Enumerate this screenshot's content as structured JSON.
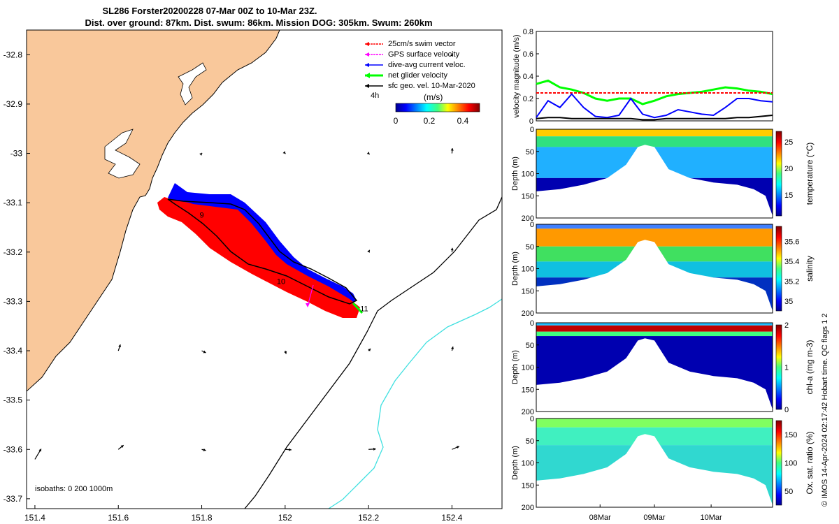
{
  "title": {
    "line1": "SL286 Forster20200228 07-Mar 00Z to 10-Mar 23Z.",
    "line2": "Dist. over ground: 87km. Dist. swum: 86km. Mission DOG: 305km. Swum: 260km"
  },
  "colors": {
    "land": "#f9c89b",
    "swim": "#ff0000",
    "gps": "#ff00ff",
    "current": "#0000ff",
    "net": "#00ff00",
    "geo": "#000000",
    "isobath_200": "#000000",
    "isobath_1000": "#40e0e0"
  },
  "chart_data": [
    {
      "type": "map",
      "xticks": [
        "151.4",
        "151.6",
        "151.8",
        "152",
        "152.2",
        "152.4"
      ],
      "yticks": [
        "-32.8",
        "-32.9",
        "-33",
        "-33.1",
        "-33.2",
        "-33.3",
        "-33.4",
        "-33.5",
        "-33.6",
        "-33.7"
      ],
      "xlim": [
        151.38,
        152.52
      ],
      "ylim": [
        -33.72,
        -32.75
      ],
      "legend": {
        "position": "top-right",
        "entries": [
          "25cm/s swim vector",
          "GPS surface velocity",
          "dive-avg current veloc.",
          "net glider velocity",
          "sfc geo. vel. 10-Mar-2020"
        ]
      },
      "colorbar": {
        "label": "(m/s)",
        "ticks": [
          "0",
          "0.2",
          "0.4"
        ],
        "range": [
          0,
          0.5
        ]
      },
      "time_label": "4h",
      "day_labels": [
        {
          "text": "9",
          "lon": 151.795,
          "lat": -33.13
        },
        {
          "text": "10",
          "lon": 151.98,
          "lat": -33.265
        },
        {
          "text": "11",
          "lon": 152.18,
          "lat": -33.32
        }
      ],
      "isobath_label": "isobaths: 0   200  1000m",
      "geo_vectors": [
        {
          "lon": 151.4,
          "lat": -33.62,
          "u": 0.3,
          "v": 0.5
        },
        {
          "lon": 151.6,
          "lat": -33.6,
          "u": 0.25,
          "v": 0.2
        },
        {
          "lon": 151.6,
          "lat": -33.4,
          "u": 0.1,
          "v": 0.3
        },
        {
          "lon": 151.8,
          "lat": -33.6,
          "u": 0.2,
          "v": -0.05
        },
        {
          "lon": 151.8,
          "lat": -33.4,
          "u": 0.2,
          "v": -0.1
        },
        {
          "lon": 152,
          "lat": -33.6,
          "u": 0.3,
          "v": -0.02
        },
        {
          "lon": 152,
          "lat": -33.4,
          "u": 0.05,
          "v": -0.15
        },
        {
          "lon": 152.2,
          "lat": -33.6,
          "u": 0.35,
          "v": 0.02
        },
        {
          "lon": 152.2,
          "lat": -33.4,
          "u": 0.1,
          "v": 0.1
        },
        {
          "lon": 152.4,
          "lat": -33.6,
          "u": 0.35,
          "v": 0.15
        },
        {
          "lon": 152.4,
          "lat": -33.4,
          "u": 0.05,
          "v": 0.2
        },
        {
          "lon": 152.2,
          "lat": -33.2,
          "u": 0.05,
          "v": 0.1
        },
        {
          "lon": 152.4,
          "lat": -33.2,
          "u": 0.02,
          "v": 0.2
        },
        {
          "lon": 152.4,
          "lat": -33,
          "u": 0.02,
          "v": 0.25
        },
        {
          "lon": 152.2,
          "lat": -33,
          "u": 0.05,
          "v": -0.05
        },
        {
          "lon": 152,
          "lat": -33,
          "u": 0.02,
          "v": -0.02
        },
        {
          "lon": 151.8,
          "lat": -33,
          "u": 0.02,
          "v": 0.02
        },
        {
          "lon": 152.4,
          "lat": -32.8,
          "u": 0.02,
          "v": 0.05
        }
      ]
    },
    {
      "type": "line",
      "ylabel": "velocity magnitude (m/s)",
      "ylim": [
        0,
        0.8
      ],
      "yticks": [
        "0",
        "0.2",
        "0.4",
        "0.6",
        "0.8"
      ],
      "x": [
        0,
        0.05,
        0.1,
        0.15,
        0.2,
        0.25,
        0.3,
        0.35,
        0.4,
        0.45,
        0.5,
        0.55,
        0.6,
        0.65,
        0.7,
        0.75,
        0.8,
        0.85,
        0.9,
        0.95,
        1.0
      ],
      "series": [
        {
          "values": [
            0.33,
            0.36,
            0.3,
            0.28,
            0.25,
            0.2,
            0.18,
            0.2,
            0.2,
            0.15,
            0.18,
            0.22,
            0.24,
            0.25,
            0.26,
            0.28,
            0.3,
            0.29,
            0.27,
            0.26,
            0.24
          ],
          "color": "#00ff00"
        },
        {
          "values": [
            0.25,
            0.25,
            0.25,
            0.25,
            0.25,
            0.25,
            0.25,
            0.25,
            0.25,
            0.25,
            0.25,
            0.25,
            0.25,
            0.25,
            0.25,
            0.25,
            0.25,
            0.25,
            0.25,
            0.25,
            0.25
          ],
          "color": "#ff0000"
        },
        {
          "values": [
            0.03,
            0.18,
            0.12,
            0.24,
            0.12,
            0.04,
            0.03,
            0.05,
            0.2,
            0.06,
            0.03,
            0.05,
            0.1,
            0.08,
            0.06,
            0.05,
            0.12,
            0.2,
            0.2,
            0.18,
            0.17
          ],
          "color": "#0000ff"
        },
        {
          "values": [
            0.02,
            0.03,
            0.03,
            0.02,
            0.02,
            0.02,
            0.02,
            0.02,
            0.02,
            0.01,
            0.01,
            0.02,
            0.02,
            0.02,
            0.02,
            0.02,
            0.02,
            0.03,
            0.03,
            0.04,
            0.05
          ],
          "color": "#000000"
        }
      ]
    },
    {
      "type": "heatmap",
      "variable": "temperature",
      "ylabel": "Depth (m)",
      "colorbar_label": "temperature (°C)",
      "yticks": [
        "0",
        "50",
        "100",
        "150",
        "200"
      ],
      "colorbar_ticks": [
        "15",
        "20",
        "25"
      ],
      "colorbar_range": [
        11,
        27
      ]
    },
    {
      "type": "heatmap",
      "variable": "salinity",
      "ylabel": "Depth (m)",
      "colorbar_label": "salinity",
      "yticks": [
        "0",
        "50",
        "100",
        "150",
        "200"
      ],
      "colorbar_ticks": [
        "35",
        "35.2",
        "35.4",
        "35.6"
      ],
      "colorbar_range": [
        34.9,
        35.75
      ]
    },
    {
      "type": "heatmap",
      "variable": "chl-a",
      "ylabel": "Depth (m)",
      "colorbar_label": "chl-a (mg m-3)",
      "yticks": [
        "0",
        "50",
        "100",
        "150",
        "200"
      ],
      "colorbar_ticks": [
        "0",
        "1",
        "2"
      ],
      "colorbar_range": [
        0,
        2
      ]
    },
    {
      "type": "heatmap",
      "variable": "oxygen",
      "ylabel": "Depth (m)",
      "colorbar_label": "Ox. sat. ratio (%)",
      "yticks": [
        "0",
        "50",
        "100",
        "150",
        "200"
      ],
      "colorbar_ticks": [
        "50",
        "100",
        "150"
      ],
      "colorbar_range": [
        25,
        175
      ],
      "xticks": [
        "08Mar",
        "09Mar",
        "10Mar"
      ]
    }
  ],
  "footer_note": "© IMOS 14-Apr-2024 02:17:42 Hobart time. QC flags 1  2"
}
